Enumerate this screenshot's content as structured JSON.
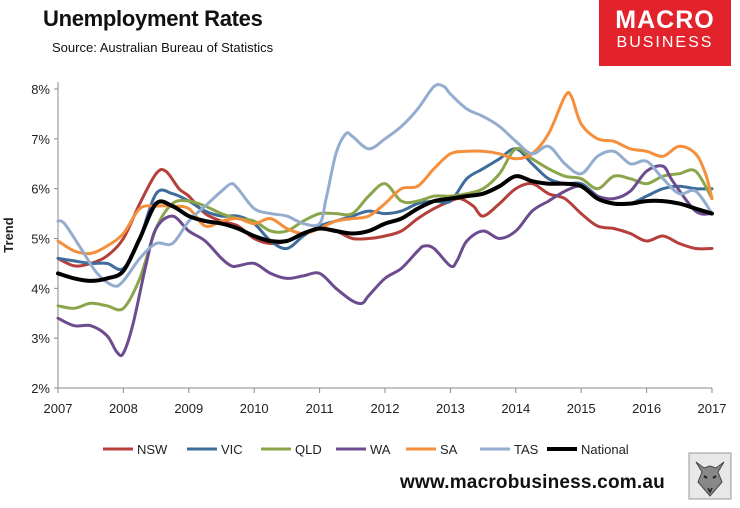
{
  "header": {
    "title": "Unemployment Rates",
    "subtitle": "Source: Australian Bureau of Statistics"
  },
  "logo": {
    "line1": "MACRO",
    "line2": "BUSINESS",
    "color": "#e3232b"
  },
  "footer": {
    "url": "www.macrobusiness.com.au"
  },
  "chart_data": {
    "type": "line",
    "title": "Unemployment Rates",
    "ylabel": "Trend",
    "xlabel": "",
    "xlim": [
      2007,
      2017
    ],
    "ylim": [
      2,
      8.2
    ],
    "x_ticks": [
      "2007",
      "2008",
      "2009",
      "2010",
      "2011",
      "2012",
      "2013",
      "2014",
      "2015",
      "2016",
      "2017"
    ],
    "y_ticks": [
      "2%",
      "3%",
      "4%",
      "5%",
      "6%",
      "7%",
      "8%"
    ],
    "grid": false,
    "legend": "bottom",
    "series": [
      {
        "name": "NSW",
        "color": "#b5403b",
        "width": 3,
        "x": [
          2007,
          2007.25,
          2007.5,
          2007.75,
          2008,
          2008.25,
          2008.5,
          2008.65,
          2008.85,
          2009,
          2009.25,
          2009.5,
          2009.75,
          2010,
          2010.25,
          2010.5,
          2010.75,
          2011,
          2011.25,
          2011.5,
          2011.75,
          2012,
          2012.25,
          2012.5,
          2012.75,
          2013,
          2013.15,
          2013.35,
          2013.5,
          2013.75,
          2014,
          2014.25,
          2014.5,
          2014.75,
          2015,
          2015.25,
          2015.5,
          2015.75,
          2016,
          2016.25,
          2016.5,
          2016.75,
          2017
        ],
        "y": [
          4.6,
          4.45,
          4.5,
          4.65,
          5.0,
          5.7,
          6.3,
          6.35,
          6.0,
          5.85,
          5.5,
          5.35,
          5.25,
          5.0,
          4.9,
          4.95,
          5.1,
          5.2,
          5.15,
          5.0,
          5.0,
          5.05,
          5.15,
          5.4,
          5.6,
          5.75,
          5.8,
          5.65,
          5.45,
          5.7,
          6.0,
          6.1,
          5.9,
          5.8,
          5.5,
          5.25,
          5.2,
          5.1,
          4.95,
          5.05,
          4.9,
          4.8,
          4.8
        ]
      },
      {
        "name": "VIC",
        "color": "#3e6c9b",
        "width": 3,
        "x": [
          2007,
          2007.25,
          2007.5,
          2007.75,
          2008,
          2008.25,
          2008.5,
          2008.75,
          2009,
          2009.25,
          2009.5,
          2009.75,
          2010,
          2010.25,
          2010.5,
          2010.75,
          2011,
          2011.25,
          2011.5,
          2011.75,
          2012,
          2012.25,
          2012.5,
          2012.75,
          2013,
          2013.25,
          2013.5,
          2013.75,
          2014,
          2014.25,
          2014.5,
          2014.75,
          2015,
          2015.25,
          2015.5,
          2015.75,
          2016,
          2016.25,
          2016.5,
          2016.75,
          2017
        ],
        "y": [
          4.6,
          4.55,
          4.5,
          4.5,
          4.4,
          5.0,
          5.9,
          5.9,
          5.75,
          5.55,
          5.45,
          5.45,
          5.3,
          4.95,
          4.8,
          5.05,
          5.25,
          5.35,
          5.45,
          5.55,
          5.5,
          5.55,
          5.7,
          5.75,
          5.75,
          6.2,
          6.4,
          6.6,
          6.8,
          6.5,
          6.2,
          6.1,
          6.1,
          5.85,
          5.7,
          5.7,
          5.85,
          6.0,
          6.05,
          6.0,
          6.0
        ]
      },
      {
        "name": "QLD",
        "color": "#8ba54a",
        "width": 3,
        "x": [
          2007,
          2007.25,
          2007.5,
          2007.75,
          2008,
          2008.25,
          2008.5,
          2008.75,
          2009,
          2009.25,
          2009.5,
          2009.75,
          2010,
          2010.25,
          2010.5,
          2010.75,
          2011,
          2011.25,
          2011.5,
          2011.75,
          2012,
          2012.25,
          2012.5,
          2012.75,
          2013,
          2013.25,
          2013.5,
          2013.75,
          2014,
          2014.25,
          2014.5,
          2014.75,
          2015,
          2015.25,
          2015.5,
          2015.75,
          2016,
          2016.25,
          2016.5,
          2016.75,
          2017
        ],
        "y": [
          3.65,
          3.6,
          3.7,
          3.65,
          3.6,
          4.2,
          5.2,
          5.7,
          5.75,
          5.65,
          5.5,
          5.4,
          5.35,
          5.15,
          5.15,
          5.35,
          5.5,
          5.5,
          5.5,
          5.85,
          6.1,
          5.75,
          5.75,
          5.85,
          5.85,
          5.9,
          6.0,
          6.3,
          6.8,
          6.6,
          6.4,
          6.25,
          6.2,
          6.0,
          6.25,
          6.2,
          6.1,
          6.25,
          6.3,
          6.35,
          5.8
        ]
      },
      {
        "name": "WA",
        "color": "#6c4c8f",
        "width": 3,
        "x": [
          2007,
          2007.25,
          2007.5,
          2007.75,
          2007.9,
          2008,
          2008.15,
          2008.35,
          2008.5,
          2008.75,
          2009,
          2009.25,
          2009.5,
          2009.65,
          2009.75,
          2010,
          2010.25,
          2010.5,
          2010.75,
          2011,
          2011.25,
          2011.5,
          2011.65,
          2011.75,
          2012,
          2012.25,
          2012.5,
          2012.6,
          2012.75,
          2013,
          2013.1,
          2013.25,
          2013.5,
          2013.75,
          2014,
          2014.25,
          2014.5,
          2014.75,
          2015,
          2015.25,
          2015.5,
          2015.75,
          2016,
          2016.25,
          2016.4,
          2016.75,
          2017
        ],
        "y": [
          3.4,
          3.25,
          3.25,
          3.05,
          2.72,
          2.7,
          3.3,
          4.5,
          5.2,
          5.45,
          5.15,
          4.95,
          4.6,
          4.45,
          4.45,
          4.5,
          4.3,
          4.2,
          4.25,
          4.3,
          4.0,
          3.75,
          3.7,
          3.85,
          4.2,
          4.4,
          4.75,
          4.85,
          4.8,
          4.45,
          4.55,
          4.95,
          5.15,
          5.0,
          5.15,
          5.55,
          5.75,
          5.95,
          6.05,
          5.85,
          5.8,
          5.95,
          6.35,
          6.45,
          6.15,
          5.55,
          5.5
        ]
      },
      {
        "name": "SA",
        "color": "#f58f3b",
        "width": 3,
        "x": [
          2007,
          2007.25,
          2007.5,
          2007.75,
          2008,
          2008.25,
          2008.5,
          2008.75,
          2009,
          2009.25,
          2009.5,
          2009.75,
          2010,
          2010.25,
          2010.5,
          2010.75,
          2011,
          2011.25,
          2011.5,
          2011.75,
          2012,
          2012.25,
          2012.5,
          2012.75,
          2013,
          2013.25,
          2013.5,
          2013.75,
          2014,
          2014.25,
          2014.5,
          2014.75,
          2014.85,
          2015,
          2015.25,
          2015.5,
          2015.75,
          2016,
          2016.25,
          2016.5,
          2016.75,
          2016.9,
          2017
        ],
        "y": [
          4.95,
          4.75,
          4.7,
          4.85,
          5.1,
          5.6,
          5.65,
          5.65,
          5.6,
          5.25,
          5.35,
          5.4,
          5.3,
          5.4,
          5.2,
          5.1,
          5.2,
          5.35,
          5.4,
          5.45,
          5.7,
          6.0,
          6.05,
          6.4,
          6.7,
          6.75,
          6.75,
          6.7,
          6.6,
          6.7,
          7.1,
          7.85,
          7.85,
          7.3,
          7.0,
          6.95,
          6.8,
          6.75,
          6.65,
          6.85,
          6.7,
          6.3,
          5.8
        ]
      },
      {
        "name": "TAS",
        "color": "#94adcf",
        "width": 3,
        "x": [
          2007,
          2007.1,
          2007.35,
          2007.6,
          2007.85,
          2008,
          2008.25,
          2008.5,
          2008.75,
          2009,
          2009.25,
          2009.5,
          2009.65,
          2009.75,
          2010,
          2010.25,
          2010.5,
          2010.75,
          2011,
          2011.1,
          2011.25,
          2011.4,
          2011.5,
          2011.75,
          2012,
          2012.25,
          2012.5,
          2012.75,
          2012.9,
          2013,
          2013.25,
          2013.5,
          2013.75,
          2014,
          2014.25,
          2014.5,
          2014.75,
          2015,
          2015.25,
          2015.5,
          2015.75,
          2016,
          2016.25,
          2016.5,
          2016.75,
          2017
        ],
        "y": [
          5.35,
          5.3,
          4.8,
          4.3,
          4.05,
          4.15,
          4.6,
          4.9,
          4.9,
          5.35,
          5.65,
          5.95,
          6.1,
          6.0,
          5.6,
          5.5,
          5.45,
          5.3,
          5.3,
          5.8,
          6.7,
          7.1,
          7.05,
          6.8,
          7.0,
          7.25,
          7.6,
          8.05,
          8.05,
          7.9,
          7.6,
          7.45,
          7.25,
          6.95,
          6.7,
          6.85,
          6.5,
          6.3,
          6.65,
          6.75,
          6.5,
          6.55,
          6.2,
          5.9,
          5.95,
          5.5
        ]
      },
      {
        "name": "National",
        "color": "#000000",
        "width": 4,
        "x": [
          2007,
          2007.25,
          2007.5,
          2007.75,
          2008,
          2008.25,
          2008.5,
          2008.75,
          2009,
          2009.25,
          2009.5,
          2009.75,
          2010,
          2010.25,
          2010.5,
          2010.75,
          2011,
          2011.25,
          2011.5,
          2011.75,
          2012,
          2012.25,
          2012.5,
          2012.75,
          2013,
          2013.25,
          2013.5,
          2013.75,
          2014,
          2014.25,
          2014.5,
          2014.75,
          2015,
          2015.25,
          2015.5,
          2015.75,
          2016,
          2016.25,
          2016.5,
          2016.75,
          2017
        ],
        "y": [
          4.3,
          4.2,
          4.15,
          4.2,
          4.35,
          5.0,
          5.7,
          5.65,
          5.45,
          5.35,
          5.3,
          5.2,
          5.05,
          4.95,
          4.95,
          5.1,
          5.2,
          5.15,
          5.1,
          5.15,
          5.3,
          5.4,
          5.6,
          5.75,
          5.8,
          5.85,
          5.9,
          6.05,
          6.25,
          6.15,
          6.1,
          6.1,
          6.05,
          5.8,
          5.7,
          5.7,
          5.75,
          5.75,
          5.7,
          5.6,
          5.5
        ]
      }
    ]
  }
}
